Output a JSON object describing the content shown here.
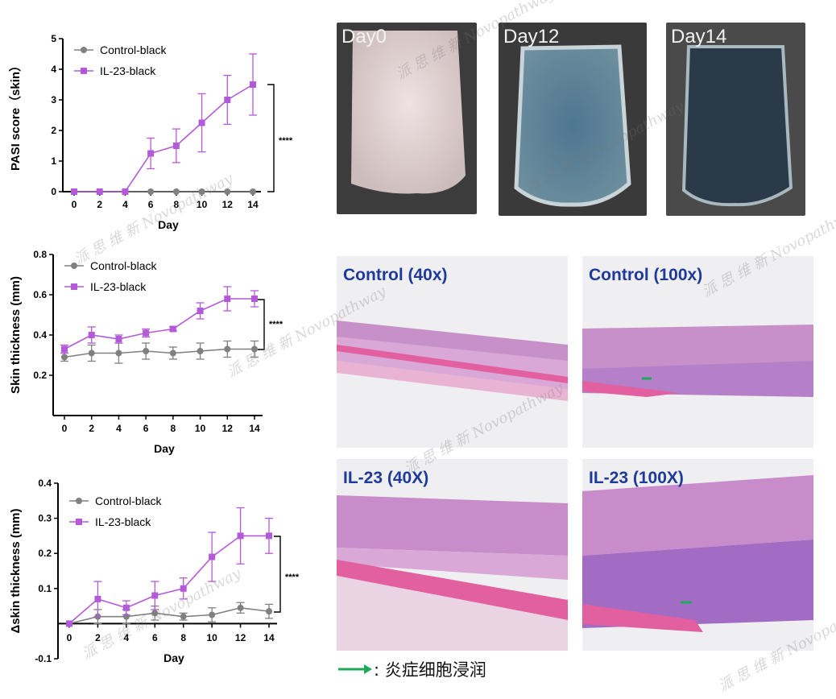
{
  "chart_data": [
    {
      "type": "line",
      "panel": "pasi",
      "x": [
        0,
        2,
        4,
        6,
        8,
        10,
        12,
        14
      ],
      "xlabel": "Day",
      "ylabel": "PASI score（skin）",
      "ylim": [
        0,
        5
      ],
      "yticks": [
        0,
        1,
        2,
        3,
        4,
        5
      ],
      "series": [
        {
          "name": "Control-black",
          "color": "#808080",
          "marker": "circle",
          "values": [
            0,
            0,
            0,
            0,
            0,
            0,
            0,
            0
          ],
          "err": [
            0,
            0,
            0,
            0,
            0,
            0,
            0,
            0
          ]
        },
        {
          "name": "IL-23-black",
          "color": "#b45ad9",
          "marker": "square",
          "values": [
            0,
            0,
            0,
            1.25,
            1.5,
            2.25,
            3.0,
            3.5
          ],
          "err": [
            0,
            0,
            0,
            0.5,
            0.55,
            0.95,
            0.8,
            1.0
          ]
        }
      ],
      "significance": "****",
      "legend": "top-left"
    },
    {
      "type": "line",
      "panel": "thickness",
      "x": [
        0,
        2,
        4,
        6,
        8,
        10,
        12,
        14
      ],
      "xlabel": "Day",
      "ylabel": "Skin thickness (mm)",
      "ylim": [
        0,
        0.8
      ],
      "yticks": [
        0.2,
        0.4,
        0.6,
        0.8
      ],
      "ytick_labels": [
        "0.2",
        "0.4",
        "0.6",
        "0.8"
      ],
      "series": [
        {
          "name": "Control-black",
          "color": "#808080",
          "marker": "circle",
          "values": [
            0.29,
            0.31,
            0.31,
            0.32,
            0.31,
            0.32,
            0.33,
            0.33
          ],
          "err": [
            0.02,
            0.04,
            0.05,
            0.04,
            0.03,
            0.04,
            0.04,
            0.04
          ]
        },
        {
          "name": "IL-23-black",
          "color": "#b45ad9",
          "marker": "square",
          "values": [
            0.33,
            0.4,
            0.38,
            0.41,
            0.43,
            0.52,
            0.58,
            0.58
          ],
          "err": [
            0.02,
            0.04,
            0.02,
            0.02,
            0.01,
            0.04,
            0.06,
            0.04
          ]
        }
      ],
      "significance": "****",
      "legend": "top-left"
    },
    {
      "type": "line",
      "panel": "delta",
      "x": [
        0,
        2,
        4,
        6,
        8,
        10,
        12,
        14
      ],
      "xlabel": "Day",
      "ylabel": "Δskin thickness (mm)",
      "ylim": [
        -0.1,
        0.4
      ],
      "yticks": [
        -0.1,
        0.1,
        0.2,
        0.3,
        0.4
      ],
      "ytick_labels": [
        "-0.1",
        "0.1",
        "0.2",
        "0.3",
        "0.4"
      ],
      "series": [
        {
          "name": "Control-black",
          "color": "#808080",
          "marker": "circle",
          "values": [
            0,
            0.02,
            0.02,
            0.03,
            0.02,
            0.025,
            0.045,
            0.035
          ],
          "err": [
            0,
            0.02,
            0.02,
            0.02,
            0.01,
            0.02,
            0.015,
            0.02
          ]
        },
        {
          "name": "IL-23-black",
          "color": "#b45ad9",
          "marker": "square",
          "values": [
            0,
            0.07,
            0.045,
            0.08,
            0.1,
            0.19,
            0.25,
            0.25
          ],
          "err": [
            0,
            0.05,
            0.02,
            0.04,
            0.03,
            0.07,
            0.08,
            0.05
          ]
        }
      ],
      "significance": "****",
      "legend": "top-left"
    }
  ],
  "photos": [
    {
      "label": "Day0",
      "tone": "#e8d8d8"
    },
    {
      "label": "Day12",
      "tone": "#4a6f8a"
    },
    {
      "label": "Day14",
      "tone": "#2e3e4e"
    }
  ],
  "histology": [
    {
      "label": "Control (40x)"
    },
    {
      "label": "Control (100x)"
    },
    {
      "label": "IL-23 (40X)"
    },
    {
      "label": "IL-23 (100X)"
    }
  ],
  "arrow_legend": {
    "text": ": 炎症细胞浸润",
    "color": "#1faa5a"
  },
  "watermark": {
    "cn": "派 思 维 新",
    "en": "Novopathway"
  }
}
